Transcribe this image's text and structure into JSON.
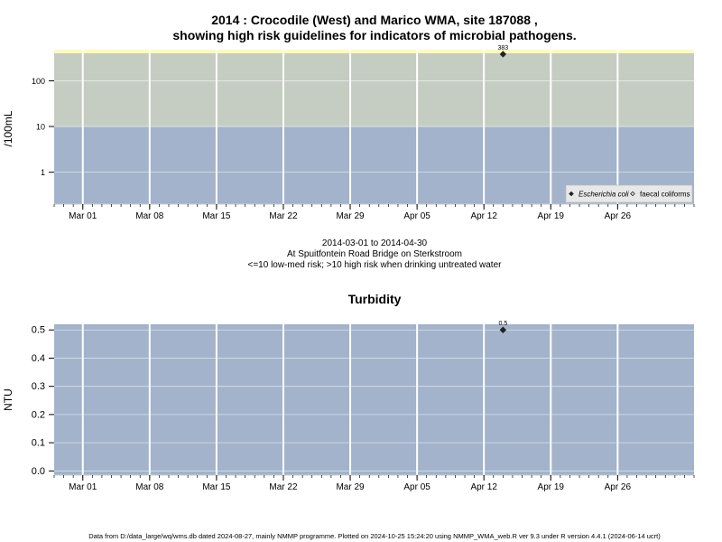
{
  "chart_data": [
    {
      "type": "scatter",
      "title_line1": "2014 : Crocodile (West) and Marico WMA, site 187088 ,",
      "title_line2": "showing high risk guidelines for indicators of microbial pathogens.",
      "ylabel": "/100mL",
      "y_scale": "log",
      "ylim": [
        0.2,
        400
      ],
      "yticks": [
        {
          "value": 1,
          "label": "1"
        },
        {
          "value": 10,
          "label": "10"
        },
        {
          "value": 100,
          "label": "100"
        }
      ],
      "xlim": [
        "2014-02-26",
        "2014-05-04"
      ],
      "xticks": [
        {
          "date": "2014-03-01",
          "label": "Mar 01"
        },
        {
          "date": "2014-03-08",
          "label": "Mar 08"
        },
        {
          "date": "2014-03-15",
          "label": "Mar 15"
        },
        {
          "date": "2014-03-22",
          "label": "Mar 22"
        },
        {
          "date": "2014-03-29",
          "label": "Mar 29"
        },
        {
          "date": "2014-04-05",
          "label": "Apr 05"
        },
        {
          "date": "2014-04-12",
          "label": "Apr 12"
        },
        {
          "date": "2014-04-19",
          "label": "Apr 19"
        },
        {
          "date": "2014-04-26",
          "label": "Apr 26"
        }
      ],
      "bands": [
        {
          "from": 0.2,
          "to": 10,
          "color": "#a2b3cb",
          "meaning": "low-med risk"
        },
        {
          "from": 10,
          "to": 400,
          "color": "#c5cdc3",
          "meaning": "high risk"
        }
      ],
      "top_strip_color": "#fff8c6",
      "grid": true,
      "series": [
        {
          "name": "Escherichia coli",
          "marker": "filled-diamond",
          "points": [
            {
              "x": "2014-04-14",
              "y": 383,
              "label": "383"
            }
          ]
        },
        {
          "name": "faecal coliforms",
          "marker": "open-diamond",
          "points": []
        }
      ],
      "legend_position": "bottom-right",
      "caption": [
        "2014-03-01 to 2014-04-30",
        "At Spuitfontein Road Bridge on Sterkstroom",
        "<=10 low-med risk; >10 high risk when drinking untreated water"
      ]
    },
    {
      "type": "scatter",
      "title": "Turbidity",
      "ylabel": "NTU",
      "ylim": [
        -0.015,
        0.52
      ],
      "yticks": [
        {
          "value": 0.0,
          "label": "0.0"
        },
        {
          "value": 0.1,
          "label": "0.1"
        },
        {
          "value": 0.2,
          "label": "0.2"
        },
        {
          "value": 0.3,
          "label": "0.3"
        },
        {
          "value": 0.4,
          "label": "0.4"
        },
        {
          "value": 0.5,
          "label": "0.5"
        }
      ],
      "xlim": [
        "2014-02-26",
        "2014-05-04"
      ],
      "xticks": [
        {
          "date": "2014-03-01",
          "label": "Mar 01"
        },
        {
          "date": "2014-03-08",
          "label": "Mar 08"
        },
        {
          "date": "2014-03-15",
          "label": "Mar 15"
        },
        {
          "date": "2014-03-22",
          "label": "Mar 22"
        },
        {
          "date": "2014-03-29",
          "label": "Mar 29"
        },
        {
          "date": "2014-04-05",
          "label": "Apr 05"
        },
        {
          "date": "2014-04-12",
          "label": "Apr 12"
        },
        {
          "date": "2014-04-19",
          "label": "Apr 19"
        },
        {
          "date": "2014-04-26",
          "label": "Apr 26"
        }
      ],
      "background_color": "#a2b3cb",
      "grid": true,
      "series": [
        {
          "marker": "filled-diamond",
          "points": [
            {
              "x": "2014-04-14",
              "y": 0.5,
              "label": "0.5"
            }
          ]
        }
      ]
    }
  ],
  "footer": "Data from D:/data_large/wq/wms.db dated 2024-08-27, mainly NMMP programme. Plotted on 2024-10-25 15:24:20 using NMMP_WMA_web.R ver 9.3 under R version 4.4.1 (2024-06-14 ucrt)"
}
